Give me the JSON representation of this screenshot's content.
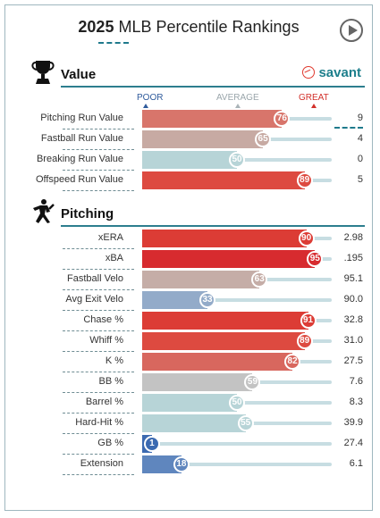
{
  "header": {
    "year": "2025",
    "title": "MLB Percentile Rankings",
    "play_icon": "play-icon"
  },
  "brand": {
    "name": "savant",
    "icon": "baseball-icon",
    "color": "#1d7f8c"
  },
  "scale": {
    "poor": "POOR",
    "average": "AVERAGE",
    "great": "GREAT"
  },
  "sections": [
    {
      "title": "Value",
      "icon": "trophy-icon",
      "rows": [
        {
          "label": "Pitching Run Value",
          "percentile": 76,
          "value": "9",
          "color": "#d8756b"
        },
        {
          "label": "Fastball Run Value",
          "percentile": 65,
          "value": "4",
          "color": "#c7aaa3"
        },
        {
          "label": "Breaking Run Value",
          "percentile": 50,
          "value": "0",
          "color": "#b7d4d7"
        },
        {
          "label": "Offspeed Run Value",
          "percentile": 89,
          "value": "5",
          "color": "#dd4a40"
        }
      ]
    },
    {
      "title": "Pitching",
      "icon": "pitcher-icon",
      "rows": [
        {
          "label": "xERA",
          "percentile": 90,
          "value": "2.98",
          "color": "#dc3c35"
        },
        {
          "label": "xBA",
          "percentile": 95,
          "value": ".195",
          "color": "#d72b2f"
        },
        {
          "label": "Fastball Velo",
          "percentile": 63,
          "value": "95.1",
          "color": "#c5ada7"
        },
        {
          "label": "Avg Exit Velo",
          "percentile": 33,
          "value": "90.0",
          "color": "#93abc9"
        },
        {
          "label": "Chase %",
          "percentile": 91,
          "value": "32.8",
          "color": "#dc3c35"
        },
        {
          "label": "Whiff %",
          "percentile": 89,
          "value": "31.0",
          "color": "#dd4a40"
        },
        {
          "label": "K %",
          "percentile": 82,
          "value": "27.5",
          "color": "#d8675e"
        },
        {
          "label": "BB %",
          "percentile": 59,
          "value": "7.6",
          "color": "#c3c3c3"
        },
        {
          "label": "Barrel %",
          "percentile": 50,
          "value": "8.3",
          "color": "#b7d4d7"
        },
        {
          "label": "Hard-Hit %",
          "percentile": 55,
          "value": "39.9",
          "color": "#b7d4d7"
        },
        {
          "label": "GB %",
          "percentile": 1,
          "value": "27.4",
          "color": "#3c6ab1"
        },
        {
          "label": "Extension",
          "percentile": 18,
          "value": "6.1",
          "color": "#5f86be"
        }
      ]
    }
  ]
}
